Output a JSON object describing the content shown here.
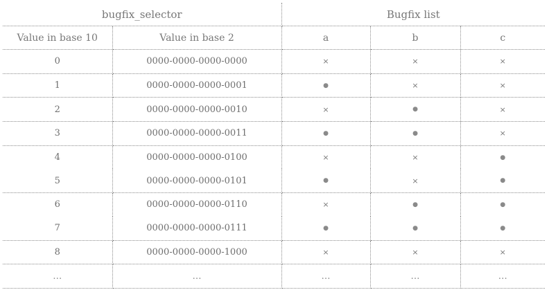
{
  "group_headers": [
    "bugfix_selector",
    "Bugfix list"
  ],
  "column_headers": [
    "Value in base 10",
    "Value in base 2",
    "a",
    "b",
    "c"
  ],
  "rows": [
    {
      "dec": "0",
      "bin": "0000-0000-0000-0000",
      "a": "×",
      "b": "×",
      "c": "×"
    },
    {
      "dec": "1",
      "bin": "0000-0000-0000-0001",
      "a": "●",
      "b": "×",
      "c": "×"
    },
    {
      "dec": "2",
      "bin": "0000-0000-0000-0010",
      "a": "×",
      "b": "●",
      "c": "×"
    },
    {
      "dec": "3",
      "bin": "0000-0000-0000-0011",
      "a": "●",
      "b": "●",
      "c": "×"
    },
    {
      "dec": "4",
      "bin": "0000-0000-0000-0100",
      "a": "×",
      "b": "×",
      "c": "●"
    },
    {
      "dec": "5",
      "bin": "0000-0000-0000-0101",
      "a": "●",
      "b": "×",
      "c": "●"
    },
    {
      "dec": "6",
      "bin": "0000-0000-0000-0110",
      "a": "×",
      "b": "●",
      "c": "●"
    },
    {
      "dec": "7",
      "bin": "0000-0000-0000-0111",
      "a": "●",
      "b": "●",
      "c": "●"
    },
    {
      "dec": "8",
      "bin": "0000-0000-0000-1000",
      "a": "×",
      "b": "×",
      "c": "×"
    },
    {
      "dec": "…",
      "bin": "…",
      "a": "…",
      "b": "…",
      "c": "…"
    }
  ]
}
